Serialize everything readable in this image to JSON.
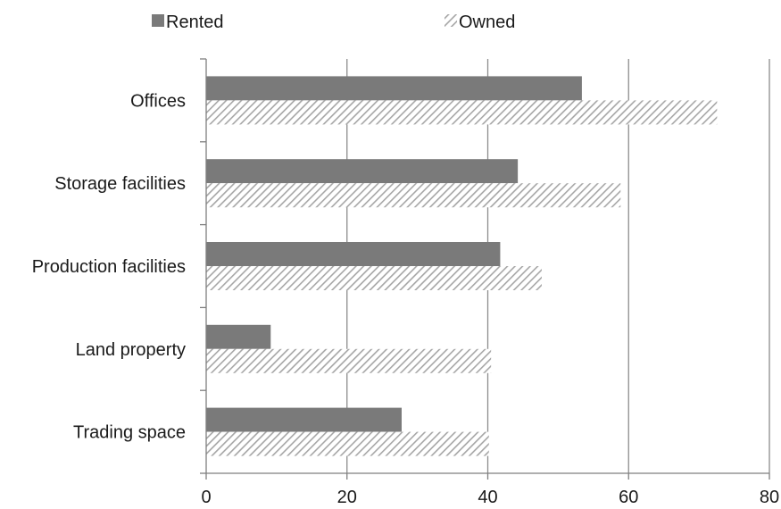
{
  "chart_data": {
    "type": "bar",
    "orientation": "horizontal",
    "title": "",
    "xlabel": "",
    "ylabel": "",
    "categories": [
      "Offices",
      "Storage facilities",
      "Production facilities",
      "Land property",
      "Trading space"
    ],
    "series": [
      {
        "name": "Rented",
        "values": [
          53.3,
          44.2,
          41.7,
          9.1,
          27.7
        ],
        "color": "#7a7a7a",
        "fill": "solid"
      },
      {
        "name": "Owned",
        "values": [
          72.5,
          58.8,
          47.6,
          40.4,
          40.1
        ],
        "color": "#b3b3b3",
        "fill": "hatched"
      }
    ],
    "xlim": [
      0,
      80
    ],
    "xticks": [
      "0",
      "20",
      "40",
      "60",
      "80"
    ],
    "grid": "vertical",
    "legend_position": "top"
  }
}
